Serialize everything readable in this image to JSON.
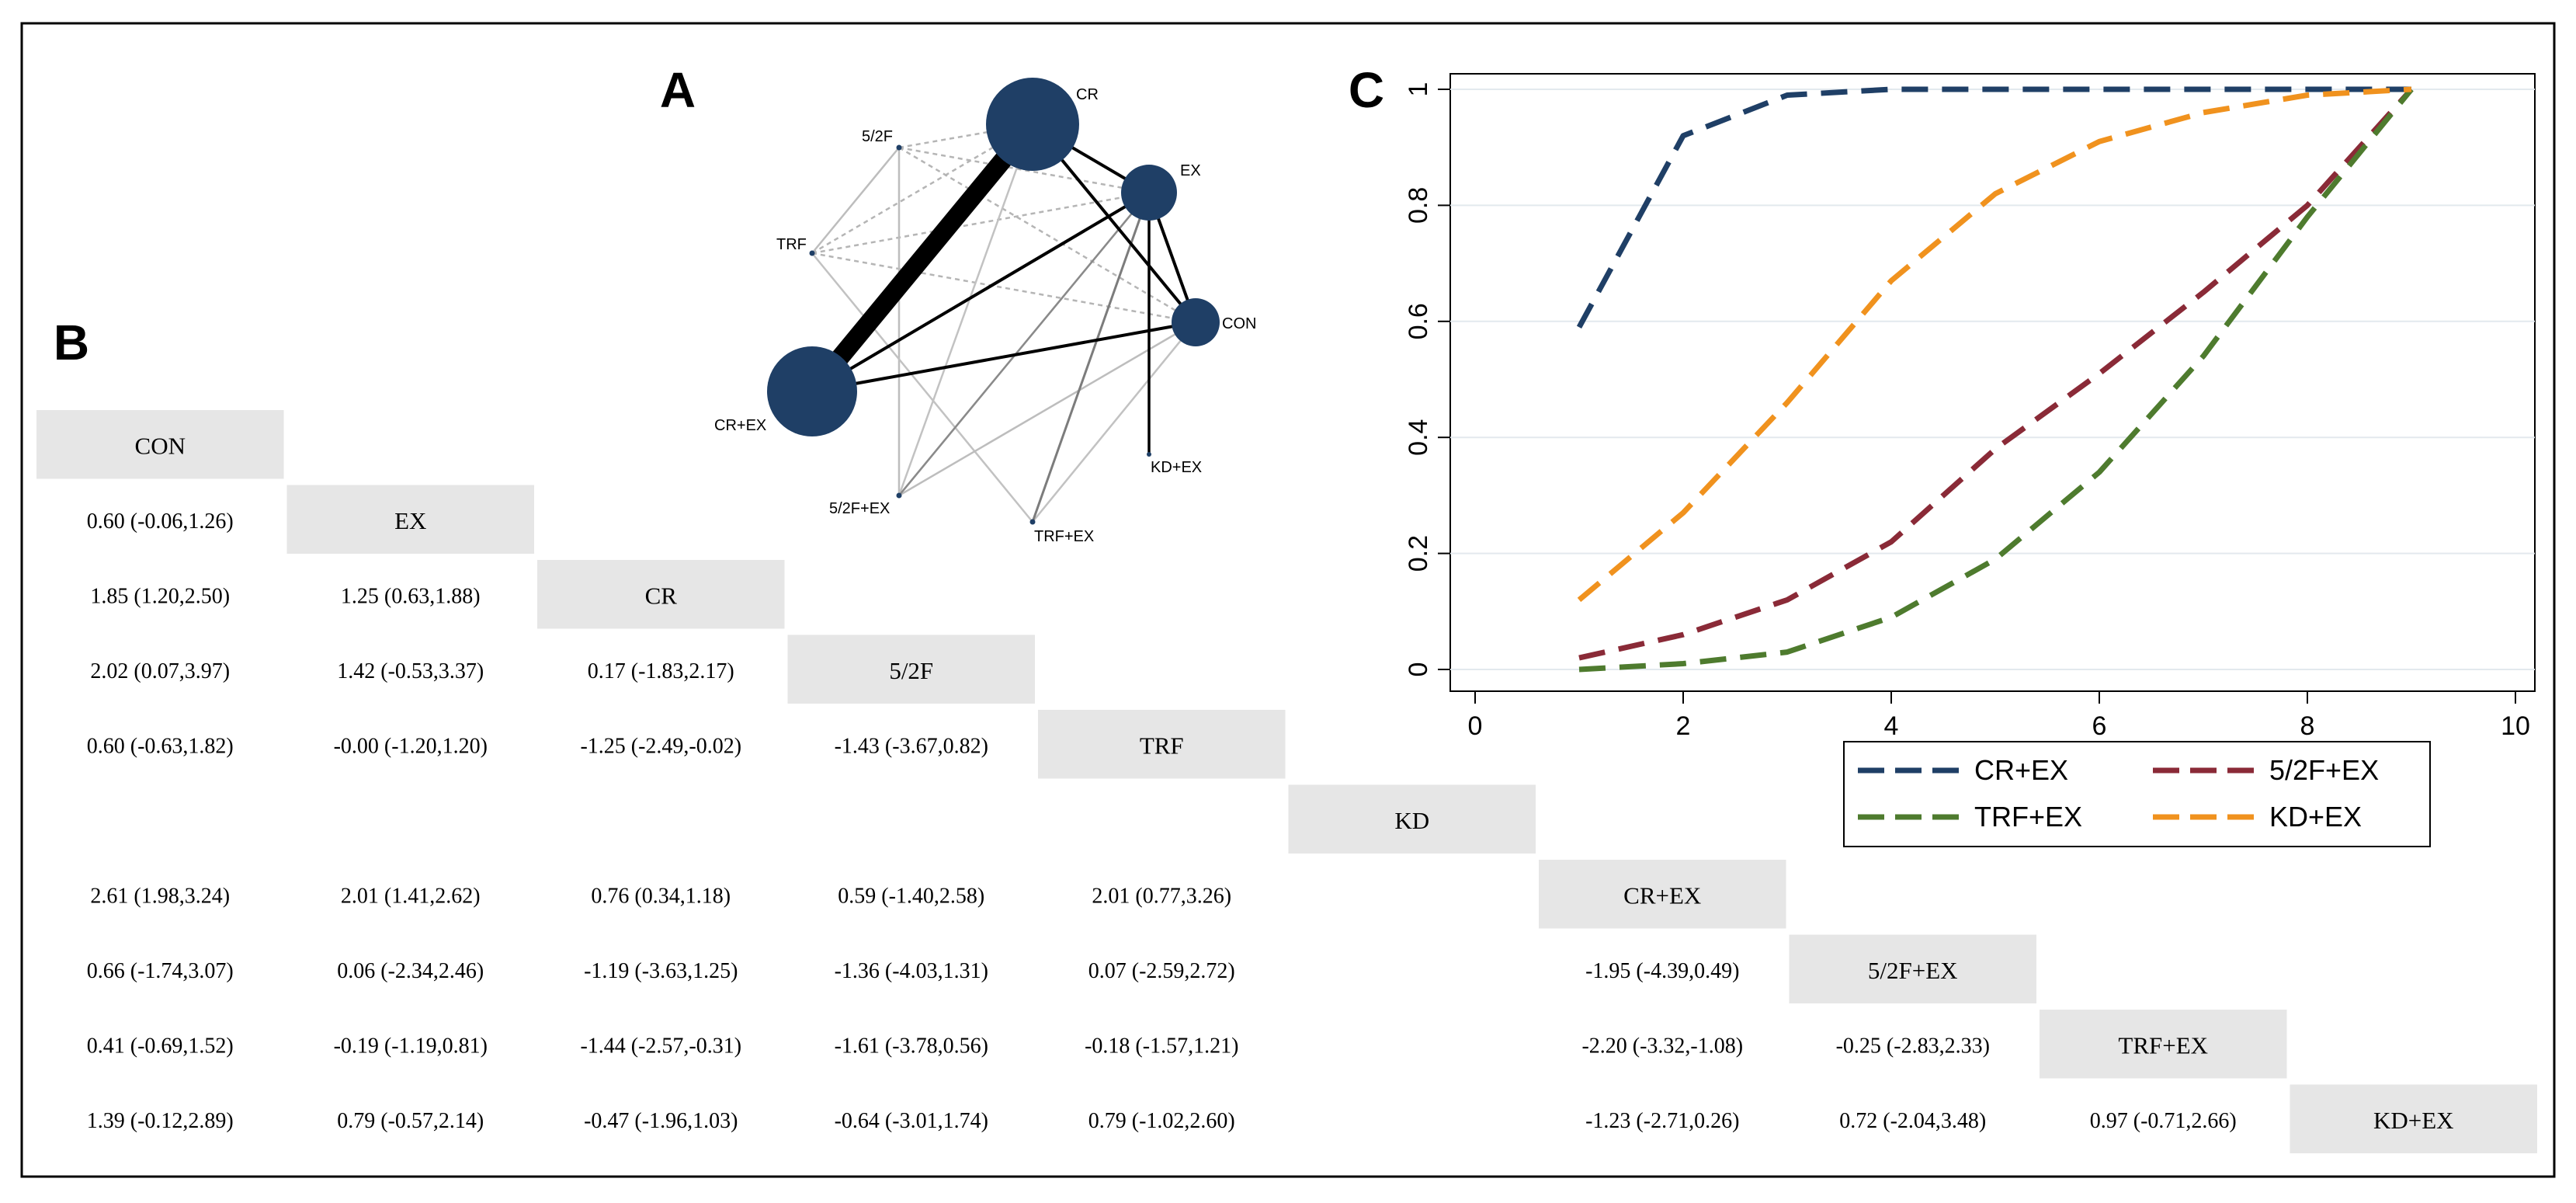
{
  "panels": {
    "a": "A",
    "b": "B",
    "c": "C"
  },
  "network": {
    "nodes": [
      {
        "id": "CR",
        "label": "CR"
      },
      {
        "id": "EX",
        "label": "EX"
      },
      {
        "id": "CON",
        "label": "CON"
      },
      {
        "id": "CR+EX",
        "label": "CR+EX"
      },
      {
        "id": "5/2F",
        "label": "5/2F"
      },
      {
        "id": "TRF",
        "label": "TRF"
      },
      {
        "id": "5/2F+EX",
        "label": "5/2F+EX"
      },
      {
        "id": "TRF+EX",
        "label": "TRF+EX"
      },
      {
        "id": "KD+EX",
        "label": "KD+EX"
      }
    ]
  },
  "league_table": {
    "headers": [
      "CON",
      "EX",
      "CR",
      "5/2F",
      "TRF",
      "KD",
      "CR+EX",
      "5/2F+EX",
      "TRF+EX",
      "KD+EX"
    ],
    "rows": [
      [],
      [
        "0.60 (-0.06,1.26)"
      ],
      [
        "1.85 (1.20,2.50)",
        "1.25 (0.63,1.88)"
      ],
      [
        "2.02 (0.07,3.97)",
        "1.42 (-0.53,3.37)",
        "0.17 (-1.83,2.17)"
      ],
      [
        "0.60 (-0.63,1.82)",
        "-0.00 (-1.20,1.20)",
        "-1.25 (-2.49,-0.02)",
        "-1.43 (-3.67,0.82)"
      ],
      [
        "",
        "",
        "",
        "",
        ""
      ],
      [
        "2.61 (1.98,3.24)",
        "2.01 (1.41,2.62)",
        "0.76 (0.34,1.18)",
        "0.59 (-1.40,2.58)",
        "2.01 (0.77,3.26)",
        ""
      ],
      [
        "0.66 (-1.74,3.07)",
        "0.06 (-2.34,2.46)",
        "-1.19 (-3.63,1.25)",
        "-1.36 (-4.03,1.31)",
        "0.07 (-2.59,2.72)",
        "",
        "-1.95 (-4.39,0.49)"
      ],
      [
        "0.41 (-0.69,1.52)",
        "-0.19 (-1.19,0.81)",
        "-1.44 (-2.57,-0.31)",
        "-1.61 (-3.78,0.56)",
        "-0.18 (-1.57,1.21)",
        "",
        "-2.20 (-3.32,-1.08)",
        "-0.25 (-2.83,2.33)"
      ],
      [
        "1.39 (-0.12,2.89)",
        "0.79 (-0.57,2.14)",
        "-0.47 (-1.96,1.03)",
        "-0.64 (-3.01,1.74)",
        "0.79 (-1.02,2.60)",
        "",
        "-1.23 (-2.71,0.26)",
        "0.72 (-2.04,3.48)",
        "0.97 (-0.71,2.66)"
      ]
    ]
  },
  "chart_data": {
    "type": "line",
    "title": "",
    "xlabel": "",
    "ylabel": "",
    "xlim": [
      0,
      10
    ],
    "ylim": [
      0,
      1
    ],
    "xticks": [
      "0",
      "2",
      "4",
      "6",
      "8",
      "10"
    ],
    "yticks": [
      "0",
      "0.2",
      "0.4",
      "0.6",
      "0.8",
      "1"
    ],
    "x": [
      1,
      2,
      3,
      4,
      5,
      6,
      7,
      8,
      9
    ],
    "series": [
      {
        "name": "CR+EX",
        "color": "#1f3f66",
        "values": [
          0.59,
          0.92,
          0.99,
          1.0,
          1.0,
          1.0,
          1.0,
          1.0,
          1.0
        ]
      },
      {
        "name": "5/2F+EX",
        "color": "#8a2a37",
        "values": [
          0.02,
          0.06,
          0.12,
          0.22,
          0.38,
          0.51,
          0.65,
          0.8,
          1.0
        ]
      },
      {
        "name": "TRF+EX",
        "color": "#4e7b2e",
        "values": [
          0.0,
          0.01,
          0.03,
          0.09,
          0.19,
          0.34,
          0.54,
          0.78,
          1.0
        ]
      },
      {
        "name": "KD+EX",
        "color": "#f0921e",
        "values": [
          0.12,
          0.27,
          0.46,
          0.67,
          0.82,
          0.91,
          0.96,
          0.99,
          1.0
        ]
      }
    ],
    "legend_position": "bottom-right"
  }
}
